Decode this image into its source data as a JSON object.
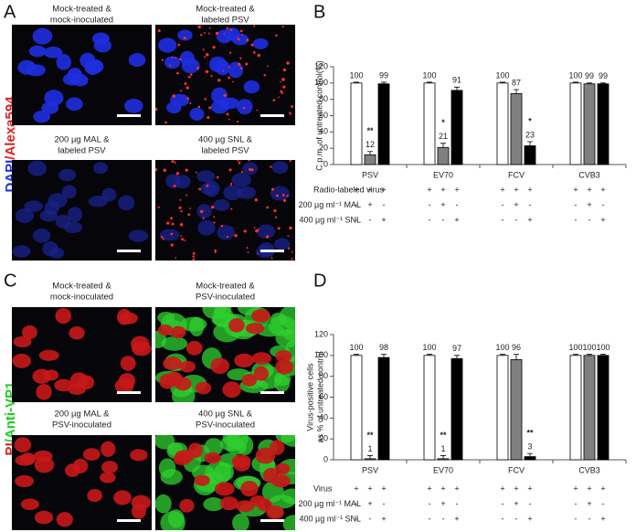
{
  "panel_labels": [
    "A",
    "B",
    "C",
    "D"
  ],
  "image_panels": [
    {
      "side_label": [
        "DAPI",
        "/Alexa594"
      ],
      "captions": [
        [
          "Mock-treated &",
          "mock-inoculated"
        ],
        [
          "Mock-treated &",
          "labeled PSV"
        ],
        [
          "200 µg MAL &",
          "labeled PSV"
        ],
        [
          "400 µg SNL &",
          "labeled PSV"
        ]
      ]
    },
    {
      "side_label": [
        "PI",
        "/Anti-VP1"
      ],
      "captions": [
        [
          "Mock-treated &",
          "mock-inoculated"
        ],
        [
          "Mock-treated &",
          "PSV-inoculated"
        ],
        [
          "200 µg MAL &",
          "PSV-inoculated"
        ],
        [
          "400 µg SNL &",
          "PSV-inoculated"
        ]
      ]
    }
  ],
  "chart_data": [
    {
      "type": "bar",
      "ylabel": [
        "C.p.m. of untreated control(%)"
      ],
      "categories": [
        "PSV",
        "EV70",
        "FCV",
        "CVB3"
      ],
      "ylim": [
        0,
        120
      ],
      "yticks": [
        0,
        20,
        40,
        60,
        80,
        100,
        120
      ],
      "series": [
        {
          "color": "#ffffff",
          "values": [
            100,
            100,
            100,
            100
          ],
          "errors": [
            1,
            1,
            1,
            1
          ],
          "annotations": [
            null,
            null,
            null,
            null
          ]
        },
        {
          "color": "#808080",
          "values": [
            12,
            21,
            87,
            99
          ],
          "errors": [
            4,
            5,
            5,
            1
          ],
          "annotations": [
            "**",
            "*",
            null,
            null
          ]
        },
        {
          "color": "#000000",
          "values": [
            99,
            91,
            23,
            99
          ],
          "errors": [
            2,
            4,
            5,
            1
          ],
          "annotations": [
            null,
            null,
            "*",
            null
          ]
        }
      ],
      "conditions": [
        {
          "label": "Radio-labeled virus",
          "signs": [
            "+",
            "+",
            "+"
          ]
        },
        {
          "label": "200 µg ml⁻¹ MAL",
          "signs": [
            "-",
            "+",
            "-"
          ]
        },
        {
          "label": "400 µg ml⁻¹ SNL",
          "signs": [
            "-",
            "-",
            "+"
          ]
        }
      ]
    },
    {
      "type": "bar",
      "ylabel": [
        "Virus-positive cells",
        "as % of untreated control"
      ],
      "categories": [
        "PSV",
        "EV70",
        "FCV",
        "CVB3"
      ],
      "ylim": [
        0,
        120
      ],
      "yticks": [
        0,
        20,
        40,
        60,
        80,
        100,
        120
      ],
      "series": [
        {
          "color": "#ffffff",
          "values": [
            100,
            100,
            100,
            100
          ],
          "errors": [
            1,
            1,
            1,
            1
          ],
          "annotations": [
            null,
            null,
            null,
            null
          ]
        },
        {
          "color": "#808080",
          "values": [
            1,
            1,
            96,
            100
          ],
          "errors": [
            3,
            3,
            5,
            1
          ],
          "annotations": [
            "**",
            "**",
            null,
            null
          ]
        },
        {
          "color": "#000000",
          "values": [
            98,
            97,
            3,
            100
          ],
          "errors": [
            3,
            3,
            3,
            1
          ],
          "annotations": [
            null,
            null,
            "**",
            null
          ]
        }
      ],
      "conditions": [
        {
          "label": "Virus",
          "signs": [
            "+",
            "+",
            "+"
          ]
        },
        {
          "label": "200 µg ml⁻¹ MAL",
          "signs": [
            "-",
            "+",
            "-"
          ]
        },
        {
          "label": "400 µg ml⁻¹ SNL",
          "signs": [
            "-",
            "-",
            "+"
          ]
        }
      ]
    }
  ]
}
